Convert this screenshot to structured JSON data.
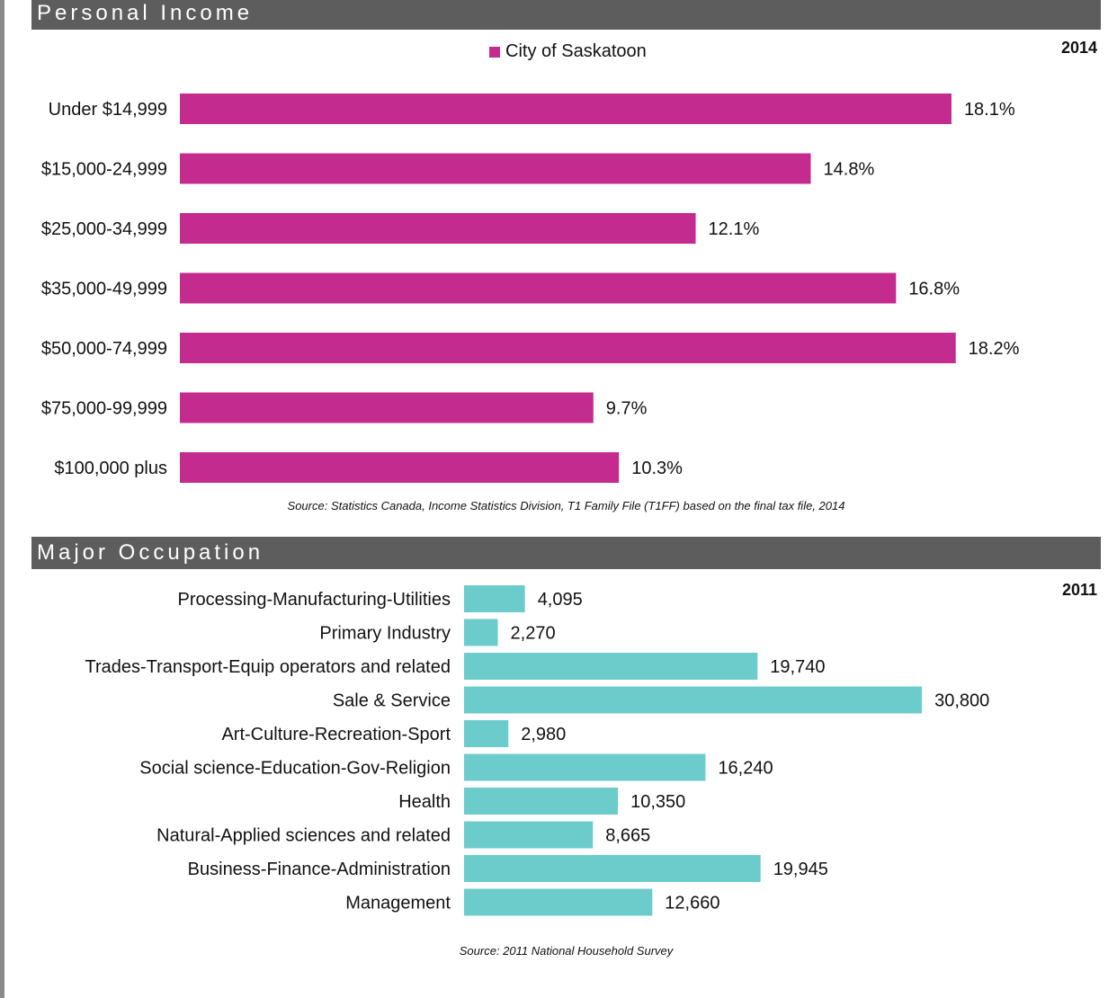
{
  "colors": {
    "income_bar": "#c42b8f",
    "occupation_bar": "#6ccbcb",
    "header_bg": "#5d5d5d"
  },
  "income": {
    "header": "Personal Income",
    "year": "2014",
    "legend": "City of Saskatoon",
    "source": "Source: Statistics Canada, Income Statistics Division, T1 Family File (T1FF) based on the final tax file, 2014"
  },
  "occupation": {
    "header": "Major Occupation",
    "year": "2011",
    "source": "Source: 2011 National Household Survey"
  },
  "chart_data": [
    {
      "type": "bar",
      "orientation": "horizontal",
      "categories": [
        "Under $14,999",
        "$15,000-24,999",
        "$25,000-34,999",
        "$35,000-49,999",
        "$50,000-74,999",
        "$75,000-99,999",
        "$100,000 plus"
      ],
      "series": [
        {
          "name": "City of Saskatoon",
          "values": [
            18.1,
            14.8,
            12.1,
            16.8,
            18.2,
            9.7,
            10.3
          ]
        }
      ],
      "value_labels": [
        "18.1%",
        "14.8%",
        "12.1%",
        "16.8%",
        "18.2%",
        "9.7%",
        "10.3%"
      ],
      "legend": "top-center",
      "grid": false
    },
    {
      "type": "bar",
      "orientation": "horizontal",
      "categories": [
        "Processing-Manufacturing-Utilities",
        "Primary Industry",
        "Trades-Transport-Equip operators and related",
        "Sale & Service",
        "Art-Culture-Recreation-Sport",
        "Social science-Education-Gov-Religion",
        "Health",
        "Natural-Applied sciences and related",
        "Business-Finance-Administration",
        "Management"
      ],
      "values": [
        4095,
        2270,
        19740,
        30800,
        2980,
        16240,
        10350,
        8665,
        19945,
        12660
      ],
      "value_labels": [
        "4,095",
        "2,270",
        "19,740",
        "30,800",
        "2,980",
        "16,240",
        "10,350",
        "8,665",
        "19,945",
        "12,660"
      ],
      "legend": "none",
      "grid": false
    }
  ]
}
